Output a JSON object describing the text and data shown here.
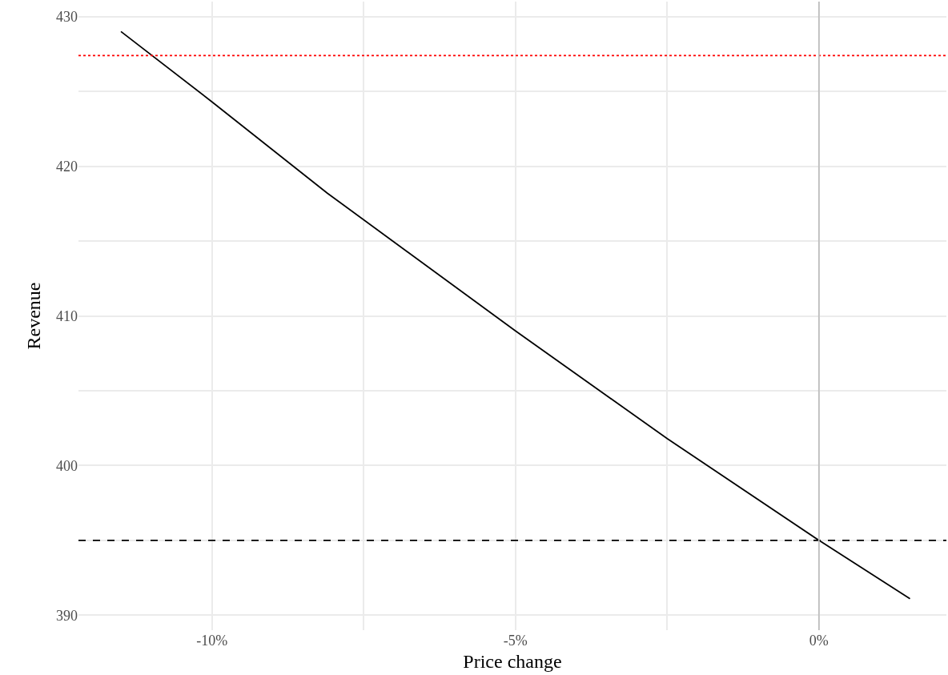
{
  "chart_data": {
    "type": "line",
    "xlabel": "Price change",
    "ylabel": "Revenue",
    "x": [
      -11.5,
      -10,
      -8.1,
      -5,
      -2.5,
      0,
      1.5
    ],
    "series": [
      {
        "color": "#000000",
        "values": [
          429.0,
          424.3,
          418.2,
          409.0,
          401.8,
          395.0,
          391.1
        ]
      }
    ],
    "xlim": [
      -12.2,
      2.1
    ],
    "xticks": [
      {
        "value": -10,
        "label": "-10%"
      },
      {
        "value": -7.5,
        "label": null
      },
      {
        "value": -5,
        "label": "-5%"
      },
      {
        "value": -2.5,
        "label": null
      },
      {
        "value": 0,
        "label": "0%"
      }
    ],
    "ylim": [
      389,
      431
    ],
    "yticks": [
      390,
      {
        "value": 395,
        "label": null
      },
      400,
      {
        "value": 405,
        "label": null
      },
      410,
      {
        "value": 415,
        "label": null
      },
      420,
      {
        "value": 425,
        "label": null
      },
      430
    ],
    "ref_lines": [
      {
        "axis": "y",
        "value": 427.4,
        "color": "#ff0000",
        "line_style": "dotted"
      },
      {
        "axis": "y",
        "value": 395,
        "color": "#000000",
        "line_style": "dashed"
      },
      {
        "axis": "x",
        "value": 0,
        "color": "#bebebe",
        "line_style": "solid"
      }
    ],
    "grid": true,
    "marker": "none",
    "line_style": "solid"
  }
}
